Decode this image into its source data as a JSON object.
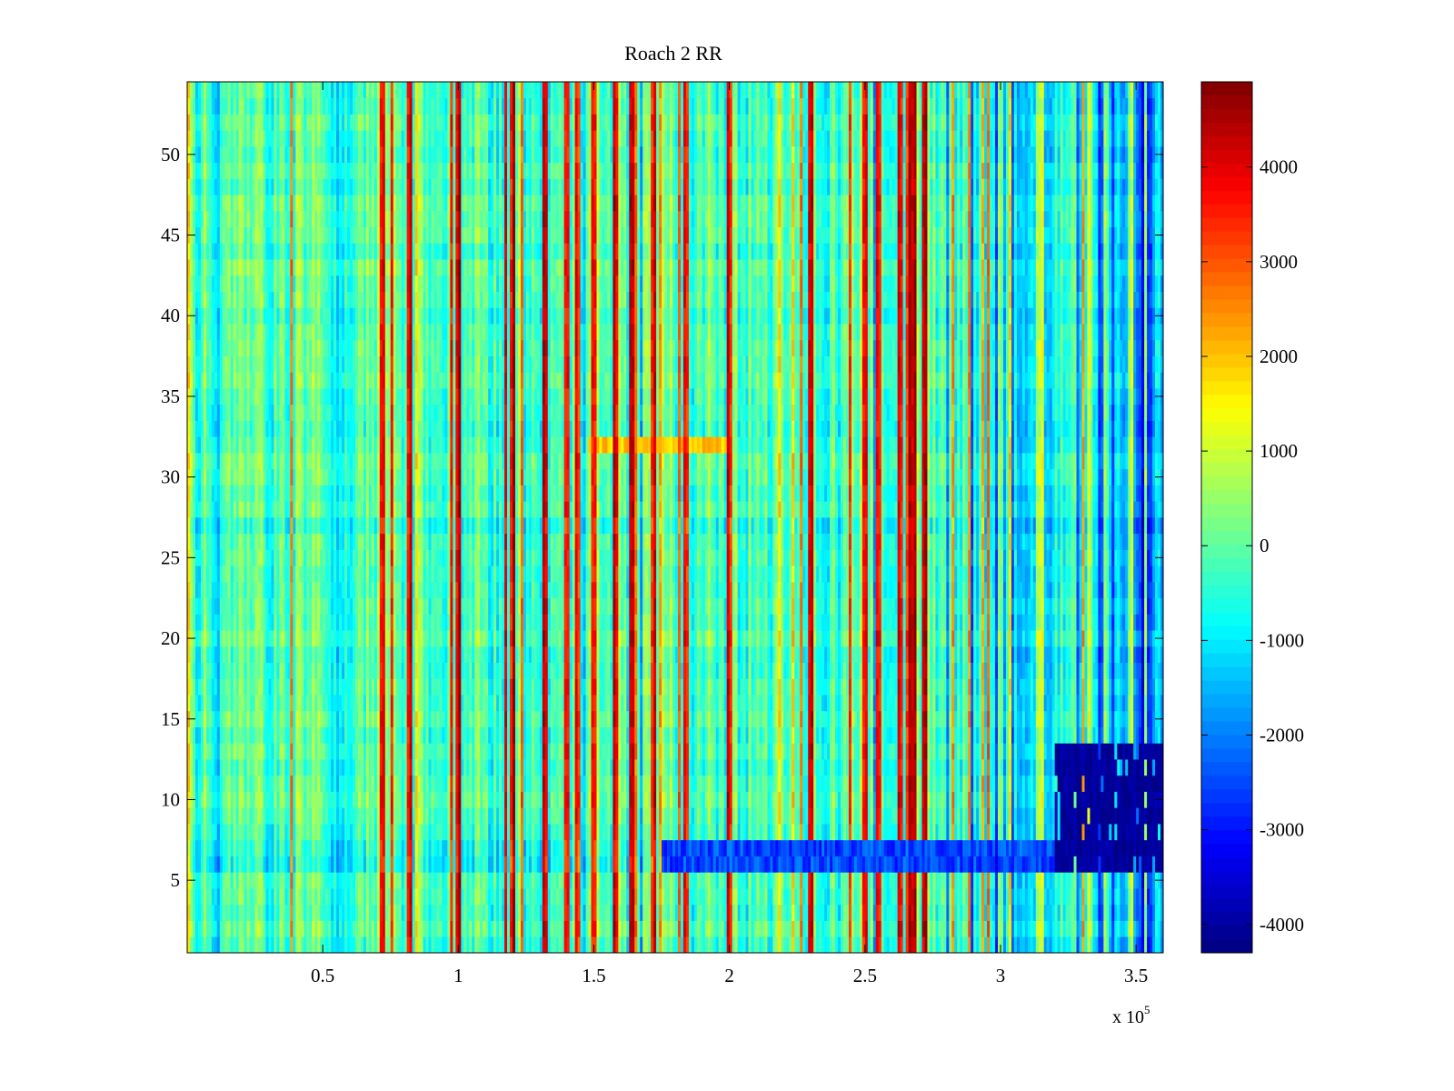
{
  "chart_data": {
    "type": "heatmap",
    "title": "Roach 2 RR",
    "xlabel": "",
    "ylabel": "",
    "x_multiplier_label": "x 10",
    "x_multiplier_exponent": "5",
    "xlim": [
      0,
      3.6
    ],
    "ylim": [
      0.5,
      54.5
    ],
    "x_ticks": [
      0.5,
      1,
      1.5,
      2,
      2.5,
      3,
      3.5
    ],
    "x_tick_labels": [
      "0.5",
      "1",
      "1.5",
      "2",
      "2.5",
      "3",
      "3.5"
    ],
    "y_ticks": [
      5,
      10,
      15,
      20,
      25,
      30,
      35,
      40,
      45,
      50
    ],
    "y_tick_labels": [
      "5",
      "10",
      "15",
      "20",
      "25",
      "30",
      "35",
      "40",
      "45",
      "50"
    ],
    "colorbar": {
      "colormap": "jet",
      "clim": [
        -4300,
        4900
      ],
      "ticks": [
        4000,
        3000,
        2000,
        1000,
        0,
        -1000,
        -2000,
        -3000,
        -4000
      ],
      "tick_labels": [
        "4000",
        "3000",
        "2000",
        "1000",
        "0",
        "-1000",
        "-2000",
        "-3000",
        "-4000"
      ]
    },
    "rows": 54,
    "columns": 360,
    "hot_columns_x1e5": [
      0.72,
      0.82,
      1.0,
      1.2,
      1.32,
      1.4,
      1.44,
      1.5,
      1.58,
      1.64,
      1.72,
      1.84,
      2.0,
      2.3,
      2.5,
      2.55,
      2.63,
      2.66,
      2.68,
      2.72
    ],
    "cool_region_x1e5": [
      2.8,
      3.6
    ],
    "dark_block": {
      "x1e5": [
        3.2,
        3.6
      ],
      "rows": [
        6,
        13
      ]
    },
    "warm_band": {
      "x1e5": [
        1.48,
        2.0
      ],
      "row": 32
    },
    "low_rows": [
      6,
      7,
      27
    ],
    "grid": false,
    "legend": "none"
  }
}
